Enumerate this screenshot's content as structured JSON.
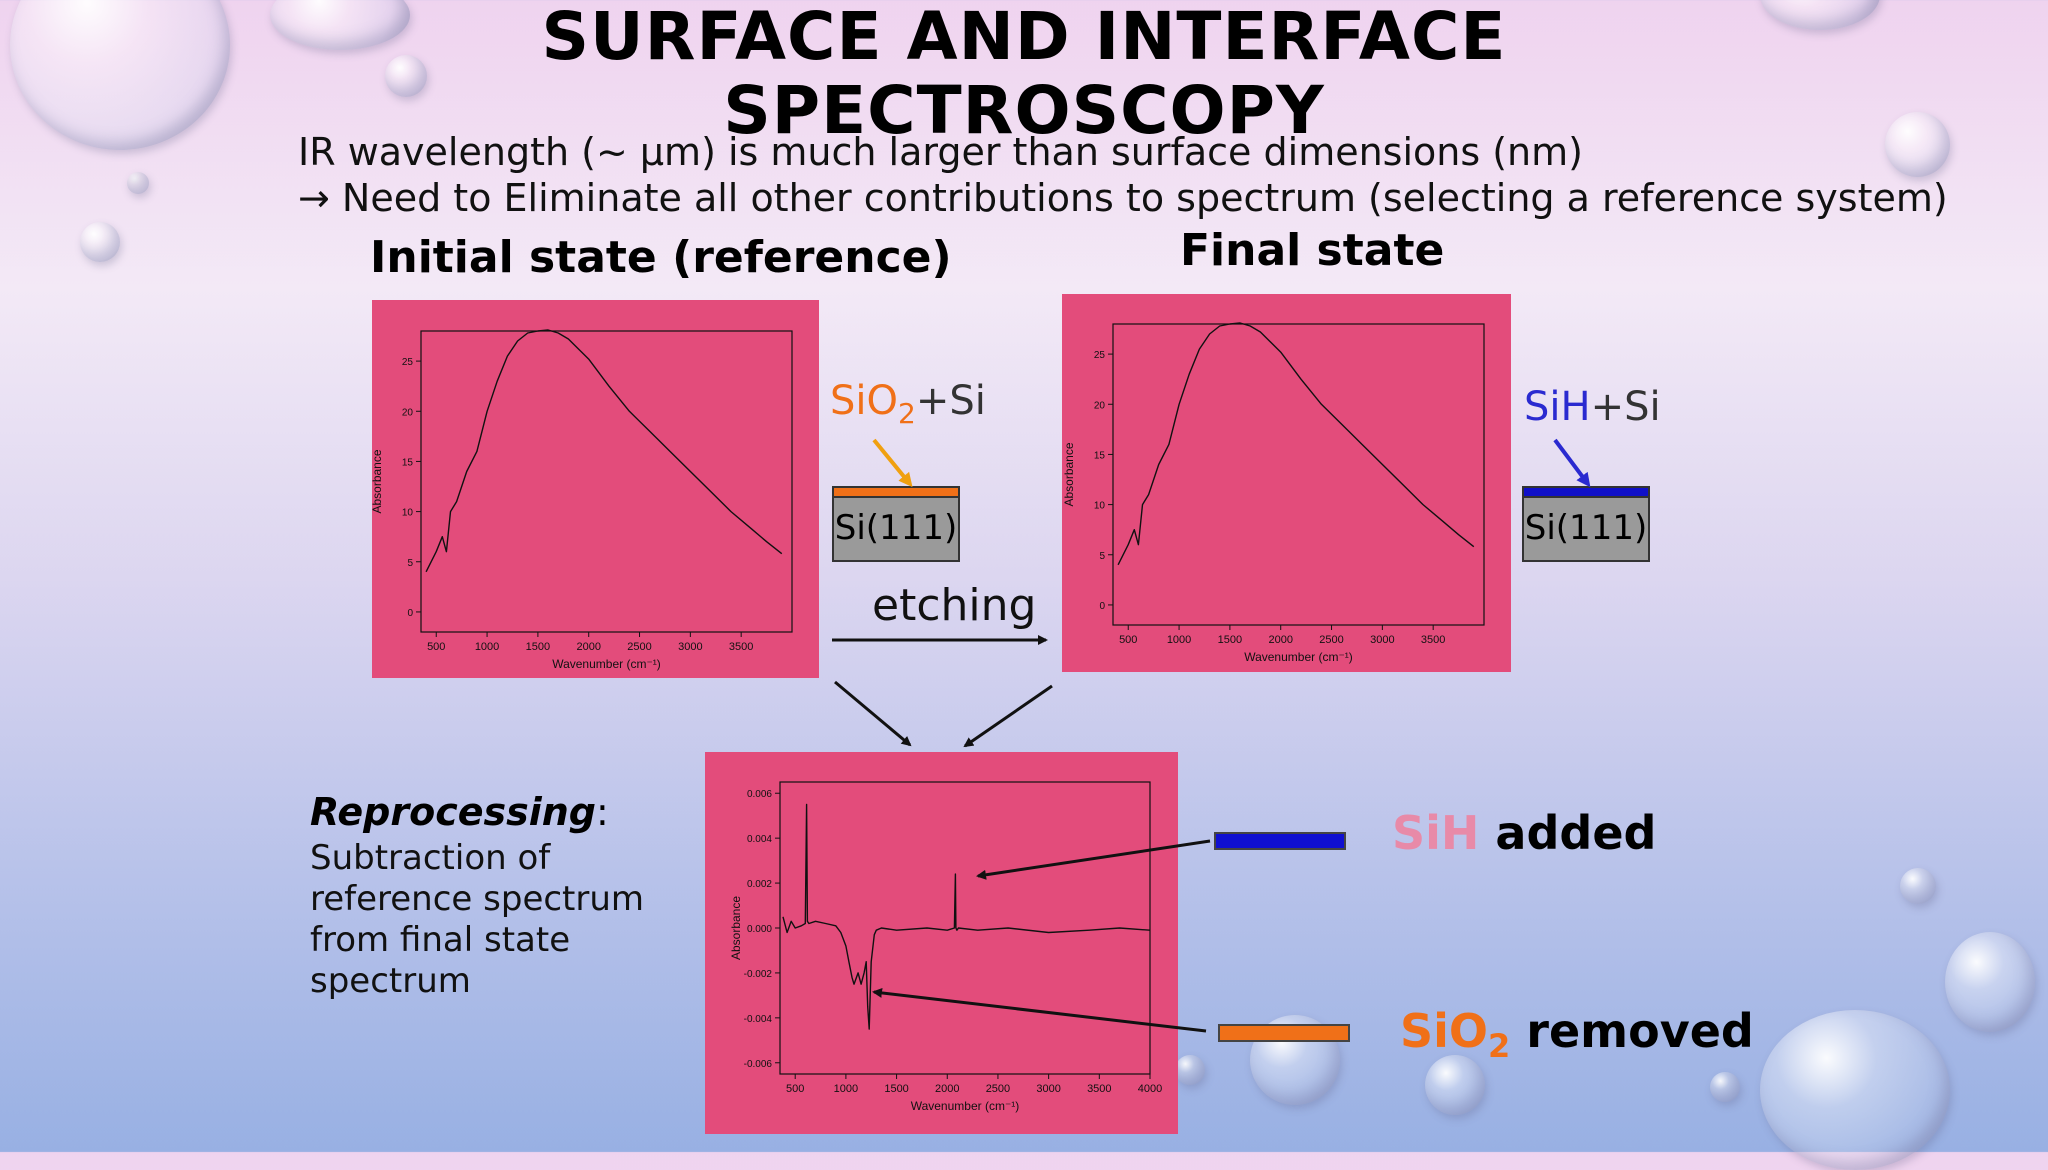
{
  "slide": {
    "title_line1": "SURFACE AND INTERFACE",
    "title_line2": "SPECTROSCOPY",
    "subtitle_line1": "IR wavelength (~ μm) is much larger than surface dimensions (nm)",
    "subtitle_line2": "→ Need to Eliminate all other contributions to spectrum (selecting a reference system)",
    "initial_heading": "Initial state (reference)",
    "final_heading": "Final state",
    "etching_label": "etching",
    "reprocessing_title": "Reprocessing",
    "reprocessing_colon": ":",
    "reprocessing_lines": [
      "Subtraction of",
      "reference spectrum",
      "from final state",
      "spectrum"
    ]
  },
  "initial_sample": {
    "layer_label_main": "SiO",
    "layer_label_sub": "2",
    "layer_label_rest": "+Si",
    "substrate_label": "Si(111)",
    "layer_color": "#f07018"
  },
  "final_sample": {
    "layer_label_main": "SiH",
    "layer_label_rest": "+Si",
    "substrate_label": "Si(111)",
    "layer_color": "#1010c8"
  },
  "legend": {
    "sih_word": "SiH",
    "sih_rest": " added",
    "sih_color": "#1010d0",
    "sio2_word": "SiO",
    "sio2_sub": "2",
    "sio2_rest": " removed",
    "sio2_color": "#f07018"
  },
  "colors": {
    "panel": "#e34c7b",
    "orange": "#f07018",
    "blue": "#2a2ad0",
    "pink_text": "#e88aa8"
  },
  "chart_data": [
    {
      "type": "line",
      "xlabel": "Wavenumber (cm⁻¹)",
      "ylabel": "Absorbance",
      "xlim": [
        350,
        4000
      ],
      "ylim": [
        -2,
        28
      ],
      "xticks": [
        500,
        1000,
        1500,
        2000,
        2500,
        3000,
        3500
      ],
      "yticks": [
        0,
        5,
        10,
        15,
        20,
        25
      ],
      "series": [
        {
          "x": [
            400,
            500,
            560,
            600,
            640,
            700,
            800,
            900,
            1000,
            1100,
            1200,
            1300,
            1400,
            1500,
            1600,
            1700,
            1800,
            2000,
            2200,
            2400,
            2600,
            2800,
            3000,
            3200,
            3400,
            3600,
            3750,
            3900
          ],
          "y": [
            4,
            6,
            7.5,
            6,
            10,
            11,
            14,
            16,
            20,
            23,
            25.5,
            27,
            27.8,
            28,
            28.1,
            27.8,
            27.2,
            25.2,
            22.5,
            20,
            18,
            16,
            14,
            12,
            10,
            8.3,
            7,
            5.8
          ]
        }
      ]
    },
    {
      "type": "line",
      "xlabel": "Wavenumber (cm⁻¹)",
      "ylabel": "Absorbance",
      "xlim": [
        350,
        4000
      ],
      "ylim": [
        -2,
        28
      ],
      "xticks": [
        500,
        1000,
        1500,
        2000,
        2500,
        3000,
        3500
      ],
      "yticks": [
        0,
        5,
        10,
        15,
        20,
        25
      ],
      "series": [
        {
          "x": [
            400,
            500,
            560,
            600,
            640,
            700,
            800,
            900,
            1000,
            1100,
            1200,
            1300,
            1400,
            1500,
            1600,
            1700,
            1800,
            2000,
            2200,
            2400,
            2600,
            2800,
            3000,
            3200,
            3400,
            3600,
            3750,
            3900
          ],
          "y": [
            4,
            6,
            7.5,
            6,
            10,
            11,
            14,
            16,
            20,
            23,
            25.5,
            27,
            27.8,
            28,
            28.1,
            27.8,
            27.2,
            25.2,
            22.5,
            20,
            18,
            16,
            14,
            12,
            10,
            8.3,
            7,
            5.8
          ]
        }
      ]
    },
    {
      "type": "line",
      "xlabel": "Wavenumber (cm⁻¹)",
      "ylabel": "Absorbance",
      "xlim": [
        350,
        4000
      ],
      "ylim": [
        -0.0065,
        0.0065
      ],
      "xticks": [
        500,
        1000,
        1500,
        2000,
        2500,
        3000,
        3500,
        4000
      ],
      "yticks": [
        0.006,
        0.004,
        0.002,
        0.0,
        -0.002,
        -0.004,
        -0.006
      ],
      "ytick_labels": [
        "0.006",
        "0.004",
        "0.002",
        "0.000",
        "-0.002",
        "-0.004",
        "-0.006"
      ],
      "series": [
        {
          "x": [
            380,
            420,
            460,
            500,
            560,
            600,
            612,
            620,
            635,
            700,
            800,
            900,
            950,
            1000,
            1030,
            1060,
            1080,
            1120,
            1150,
            1180,
            1200,
            1215,
            1230,
            1250,
            1280,
            1300,
            1350,
            1500,
            1800,
            2000,
            2070,
            2080,
            2085,
            2095,
            2110,
            2300,
            2600,
            3000,
            3400,
            3700,
            4000
          ],
          "y": [
            0.0005,
            -0.0002,
            0.0003,
            0.0,
            0.0001,
            0.0002,
            0.0055,
            0.0003,
            0.0002,
            0.0003,
            0.0002,
            0.0001,
            -0.0002,
            -0.0008,
            -0.0015,
            -0.0022,
            -0.0025,
            -0.002,
            -0.0025,
            -0.002,
            -0.0015,
            -0.0035,
            -0.0045,
            -0.0015,
            -0.0003,
            -0.0001,
            0.0,
            -0.0001,
            0.0,
            -0.0001,
            0.0,
            0.0024,
            0.0,
            -0.0001,
            0.0,
            -0.0001,
            0.0,
            -0.0002,
            -0.0001,
            0.0,
            -0.0001
          ]
        }
      ]
    }
  ]
}
